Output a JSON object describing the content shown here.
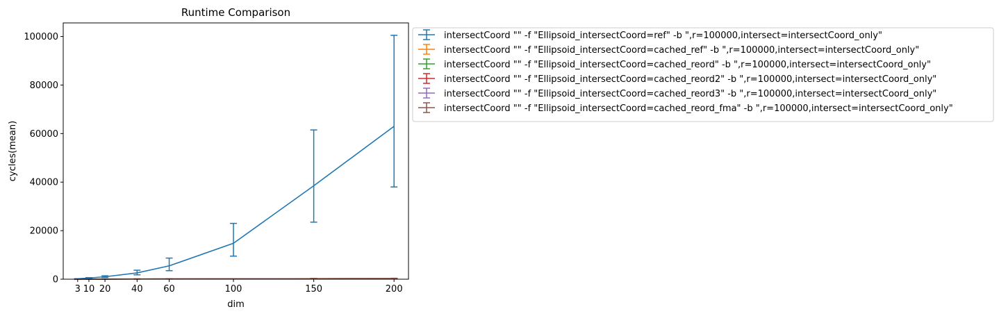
{
  "chart_data": {
    "type": "line",
    "title": "Runtime Comparison",
    "xlabel": "dim",
    "ylabel": "cycles(mean)",
    "x": [
      3,
      10,
      20,
      40,
      60,
      100,
      150,
      200
    ],
    "x_ticks": [
      "3",
      "10",
      "20",
      "40",
      "60",
      "100",
      "150",
      "200"
    ],
    "y_ticks": [
      "0",
      "20000",
      "40000",
      "60000",
      "80000",
      "100000"
    ],
    "xlim": [
      -6,
      209
    ],
    "ylim": [
      0,
      105600
    ],
    "grid": false,
    "legend_position": "outside right, top",
    "error_bars": true,
    "series": [
      {
        "name": "intersectCoord \"\" -f \"Ellipsoid_intersectCoord=ref\" -b \",r=100000,intersect=intersectCoord_only\"",
        "color": "#1f77b4",
        "values": [
          150,
          500,
          1000,
          2600,
          5500,
          14800,
          38500,
          63000
        ],
        "err_low": [
          100,
          350,
          700,
          1800,
          3500,
          9500,
          23500,
          38000
        ],
        "err_high": [
          200,
          650,
          1400,
          3700,
          8700,
          23000,
          61500,
          100500
        ]
      },
      {
        "name": "intersectCoord \"\" -f \"Ellipsoid_intersectCoord=cached_ref\" -b \",r=100000,intersect=intersectCoord_only\"",
        "color": "#ff7f0e",
        "values": [
          30,
          40,
          60,
          80,
          110,
          150,
          220,
          280
        ],
        "err_low": [
          20,
          30,
          40,
          60,
          80,
          110,
          150,
          200
        ],
        "err_high": [
          40,
          60,
          80,
          120,
          160,
          220,
          320,
          420
        ]
      },
      {
        "name": "intersectCoord \"\" -f \"Ellipsoid_intersectCoord=cached_reord\" -b \",r=100000,intersect=intersectCoord_only\"",
        "color": "#2ca02c",
        "values": [
          25,
          35,
          50,
          70,
          90,
          130,
          190,
          250
        ],
        "err_low": [
          15,
          25,
          35,
          50,
          65,
          95,
          140,
          180
        ],
        "err_high": [
          35,
          50,
          70,
          100,
          130,
          190,
          280,
          360
        ]
      },
      {
        "name": "intersectCoord \"\" -f \"Ellipsoid_intersectCoord=cached_reord2\" -b \",r=100000,intersect=intersectCoord_only\"",
        "color": "#d62728",
        "values": [
          25,
          35,
          50,
          70,
          90,
          130,
          190,
          250
        ],
        "err_low": [
          15,
          25,
          35,
          50,
          65,
          95,
          140,
          180
        ],
        "err_high": [
          35,
          50,
          70,
          100,
          130,
          190,
          280,
          360
        ]
      },
      {
        "name": "intersectCoord \"\" -f \"Ellipsoid_intersectCoord=cached_reord3\" -b \",r=100000,intersect=intersectCoord_only\"",
        "color": "#9467bd",
        "values": [
          25,
          35,
          50,
          70,
          90,
          130,
          190,
          250
        ],
        "err_low": [
          15,
          25,
          35,
          50,
          65,
          95,
          140,
          180
        ],
        "err_high": [
          35,
          50,
          70,
          100,
          130,
          190,
          280,
          360
        ]
      },
      {
        "name": "intersectCoord \"\" -f \"Ellipsoid_intersectCoord=cached_reord_fma\" -b \",r=100000,intersect=intersectCoord_only\"",
        "color": "#8c564b",
        "values": [
          25,
          35,
          50,
          70,
          90,
          130,
          190,
          250
        ],
        "err_low": [
          15,
          25,
          35,
          50,
          65,
          95,
          140,
          180
        ],
        "err_high": [
          35,
          50,
          70,
          100,
          130,
          190,
          280,
          360
        ]
      }
    ]
  }
}
